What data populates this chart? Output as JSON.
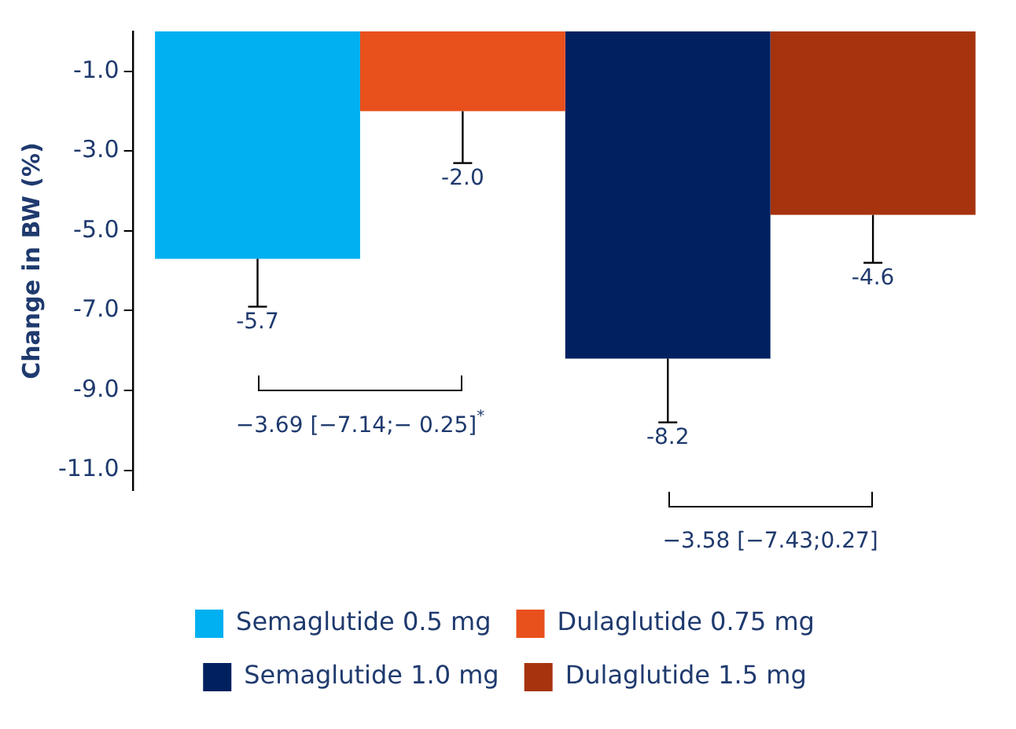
{
  "chart_data": {
    "type": "bar",
    "ylabel": "Change in BW (%)",
    "categories": [
      null
    ],
    "series": [
      {
        "name": "Semaglutide 0.5 mg",
        "color": "#00b0f0",
        "values": [
          -5.7
        ],
        "errors": [
          [
            -6.9,
            -5.7
          ]
        ],
        "value_labels": [
          "-5.7"
        ]
      },
      {
        "name": "Dulaglutide 0.75 mg",
        "color": "#e8501c",
        "values": [
          -2.0
        ],
        "errors": [
          [
            -3.3,
            -2.0
          ]
        ],
        "value_labels": [
          "-2.0"
        ]
      },
      {
        "name": "Semaglutide 1.0 mg",
        "color": "#002060",
        "values": [
          -8.2
        ],
        "errors": [
          [
            -9.8,
            -8.2
          ]
        ],
        "value_labels": [
          "-8.2"
        ]
      },
      {
        "name": "Dulaglutide 1.5 mg",
        "color": "#a6330e",
        "values": [
          -4.6
        ],
        "errors": [
          [
            -5.8,
            -4.6
          ]
        ],
        "value_labels": [
          "-4.6"
        ]
      }
    ],
    "ylim": [
      -11.5,
      0
    ],
    "yticks": [
      {
        "value": -1,
        "label": "-1.0"
      },
      {
        "value": -3,
        "label": "-3.0"
      },
      {
        "value": -5,
        "label": "-5.0"
      },
      {
        "value": -7,
        "label": "-7.0"
      },
      {
        "value": -9,
        "label": "-9.0"
      },
      {
        "value": -11,
        "label": "-11.0"
      }
    ],
    "grid": false,
    "legend": "bottom",
    "tick_labels": "y",
    "annotations": [
      "−3.69 [−7.14;− 0.25]$^{*}$",
      "−3.58 [−7.43;0.27]"
    ]
  }
}
